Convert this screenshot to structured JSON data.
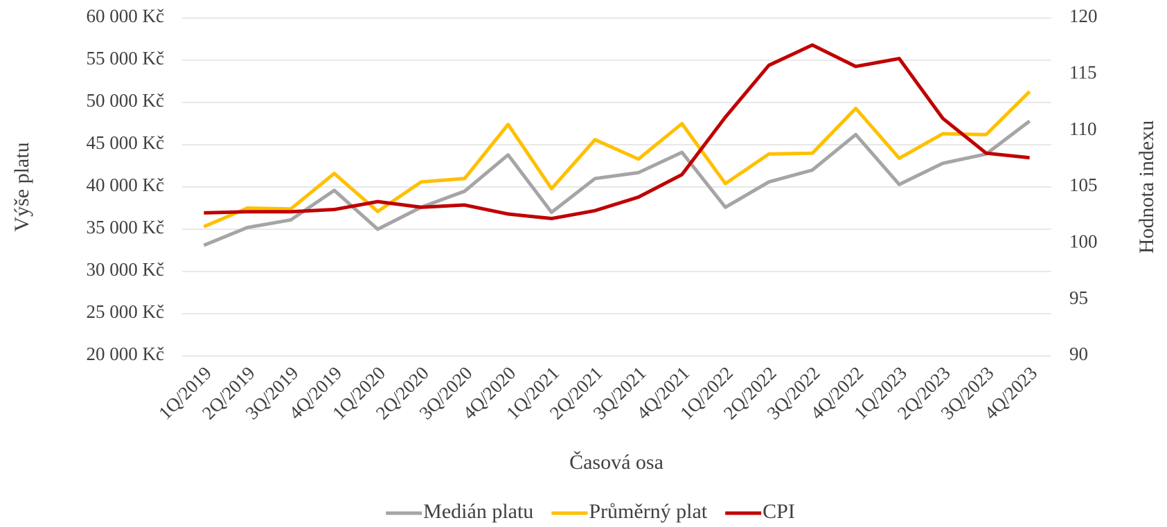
{
  "chart_data": {
    "type": "line",
    "x_label": "Časová osa",
    "y_label": "Výše platu",
    "y2_label": "Hodnota indexu",
    "categories": [
      "1Q/2019",
      "2Q/2019",
      "3Q/2019",
      "4Q/2019",
      "1Q/2020",
      "2Q/2020",
      "3Q/2020",
      "4Q/2020",
      "1Q/2021",
      "2Q/2021",
      "3Q/2021",
      "4Q/2021",
      "1Q/2022",
      "2Q/2022",
      "3Q/2022",
      "4Q/2022",
      "1Q/2023",
      "2Q/2023",
      "3Q/2023",
      "4Q/2023"
    ],
    "series": [
      {
        "name": "Medián platu",
        "color": "#a5a5a5",
        "values": [
          33100,
          35200,
          36100,
          39600,
          35000,
          37600,
          39500,
          43800,
          37000,
          41000,
          41700,
          44100,
          37600,
          40600,
          42000,
          46200,
          40300,
          42800,
          43900,
          47800
        ]
      },
      {
        "name": "Průměrný plat",
        "color": "#ffc000",
        "values": [
          35300,
          37500,
          37400,
          41600,
          37100,
          40600,
          41000,
          47400,
          39800,
          45600,
          43300,
          47500,
          40400,
          43900,
          44000,
          49300,
          43400,
          46300,
          46200,
          51300
        ]
      },
      {
        "name": "CPI",
        "color": "#c00000",
        "axis": "y2",
        "values": [
          102.7,
          102.8,
          102.8,
          103.0,
          103.7,
          103.2,
          103.4,
          102.6,
          102.2,
          102.9,
          104.1,
          106.1,
          111.2,
          115.8,
          117.6,
          115.7,
          116.4,
          111.1,
          108.0,
          107.6
        ]
      }
    ],
    "ylim": [
      20000,
      60000
    ],
    "yticks": [
      {
        "value": 20000,
        "label": "20 000 Kč"
      },
      {
        "value": 25000,
        "label": "25 000 Kč"
      },
      {
        "value": 30000,
        "label": "30 000 Kč"
      },
      {
        "value": 35000,
        "label": "35 000 Kč"
      },
      {
        "value": 40000,
        "label": "40 000 Kč"
      },
      {
        "value": 45000,
        "label": "45 000 Kč"
      },
      {
        "value": 50000,
        "label": "50 000 Kč"
      },
      {
        "value": 55000,
        "label": "55 000 Kč"
      },
      {
        "value": 60000,
        "label": "60 000 Kč"
      }
    ],
    "y2lim": [
      90,
      120
    ],
    "y2ticks": [
      90,
      95,
      100,
      105,
      110,
      115,
      120
    ],
    "grid": true,
    "legend": "bottom"
  }
}
